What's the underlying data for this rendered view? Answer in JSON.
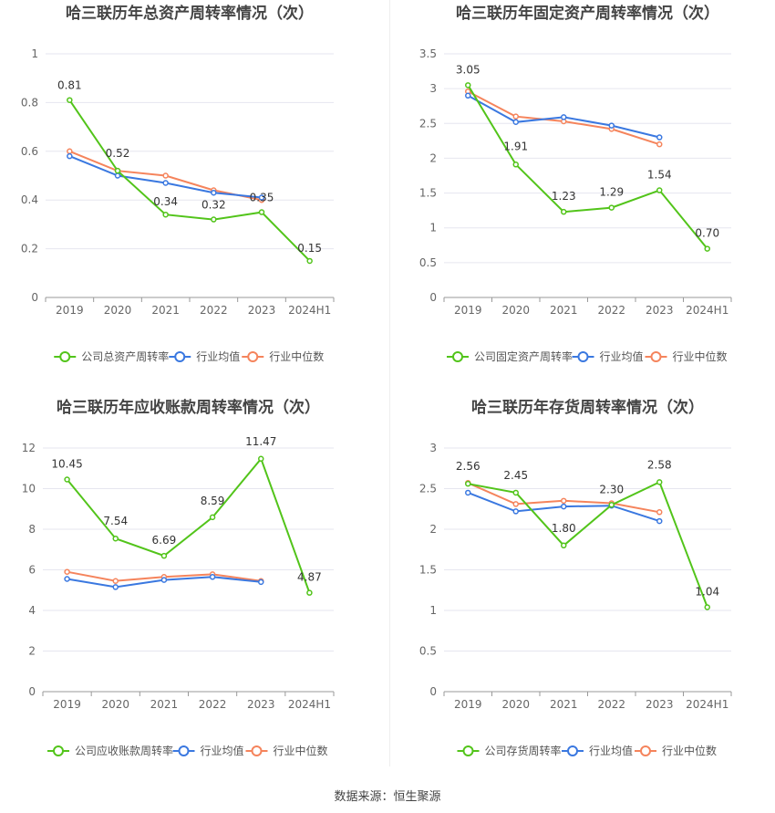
{
  "colors": {
    "company": "#52c41a",
    "average": "#3a78e0",
    "median": "#f5845c",
    "grid": "#e6e6ef",
    "axis": "#666666",
    "label": "#333333"
  },
  "legend": [
    "公司总资产周转率",
    "行业均值",
    "行业中位数"
  ],
  "source": "数据来源：恒生聚源",
  "chart_data": [
    {
      "type": "line",
      "title": "哈三联历年总资产周转率情况（次）",
      "categories": [
        "2019",
        "2020",
        "2021",
        "2022",
        "2023",
        "2024H1"
      ],
      "y_ticks": [
        "0",
        "0.2",
        "0.4",
        "0.6",
        "0.8",
        "1"
      ],
      "ylim": [
        0,
        1
      ],
      "label_decimals": 2,
      "series": [
        {
          "name": "公司总资产周转率",
          "role": "company",
          "values": [
            0.81,
            0.52,
            0.34,
            0.32,
            0.35,
            0.15
          ]
        },
        {
          "name": "行业均值",
          "role": "average",
          "values": [
            0.58,
            0.5,
            0.47,
            0.43,
            0.41,
            null
          ]
        },
        {
          "name": "行业中位数",
          "role": "median",
          "values": [
            0.6,
            0.52,
            0.5,
            0.44,
            0.4,
            null
          ]
        }
      ],
      "data_labels": [
        "0.81",
        "0.52",
        "0.34",
        "0.32",
        "0.35",
        "0.15"
      ]
    },
    {
      "type": "line",
      "title": "哈三联历年固定资产周转率情况（次）",
      "categories": [
        "2019",
        "2020",
        "2021",
        "2022",
        "2023",
        "2024H1"
      ],
      "y_ticks": [
        "0",
        "0.5",
        "1",
        "1.5",
        "2",
        "2.5",
        "3",
        "3.5"
      ],
      "ylim": [
        0,
        3.5
      ],
      "series": [
        {
          "name": "公司固定资产周转率",
          "role": "company",
          "values": [
            3.05,
            1.91,
            1.23,
            1.29,
            1.54,
            0.7
          ]
        },
        {
          "name": "行业均值",
          "role": "average",
          "values": [
            2.9,
            2.52,
            2.59,
            2.47,
            2.3,
            null
          ]
        },
        {
          "name": "行业中位数",
          "role": "median",
          "values": [
            2.96,
            2.6,
            2.53,
            2.42,
            2.2,
            null
          ]
        }
      ],
      "data_labels": [
        "3.05",
        "1.91",
        "1.23",
        "1.29",
        "1.54",
        "0.70"
      ]
    },
    {
      "type": "line",
      "title": "哈三联历年应收账款周转率情况（次）",
      "categories": [
        "2019",
        "2020",
        "2021",
        "2022",
        "2023",
        "2024H1"
      ],
      "y_ticks": [
        "0",
        "2",
        "4",
        "6",
        "8",
        "10",
        "12"
      ],
      "ylim": [
        0,
        12
      ],
      "series": [
        {
          "name": "公司应收账款周转率",
          "role": "company",
          "values": [
            10.45,
            7.54,
            6.69,
            8.59,
            11.47,
            4.87
          ]
        },
        {
          "name": "行业均值",
          "role": "average",
          "values": [
            5.55,
            5.15,
            5.5,
            5.65,
            5.4,
            null
          ]
        },
        {
          "name": "行业中位数",
          "role": "median",
          "values": [
            5.9,
            5.45,
            5.65,
            5.78,
            5.45,
            null
          ]
        }
      ],
      "data_labels": [
        "10.45",
        "7.54",
        "6.69",
        "8.59",
        "11.47",
        "4.87"
      ]
    },
    {
      "type": "line",
      "title": "哈三联历年存货周转率情况（次）",
      "categories": [
        "2019",
        "2020",
        "2021",
        "2022",
        "2023",
        "2024H1"
      ],
      "y_ticks": [
        "0",
        "0.5",
        "1",
        "1.5",
        "2",
        "2.5",
        "3"
      ],
      "ylim": [
        0,
        3
      ],
      "series": [
        {
          "name": "公司存货周转率",
          "role": "company",
          "values": [
            2.56,
            2.45,
            1.8,
            2.3,
            2.58,
            1.04
          ]
        },
        {
          "name": "行业均值",
          "role": "average",
          "values": [
            2.45,
            2.22,
            2.28,
            2.29,
            2.1,
            null
          ]
        },
        {
          "name": "行业中位数",
          "role": "median",
          "values": [
            2.57,
            2.31,
            2.35,
            2.32,
            2.21,
            null
          ]
        }
      ],
      "data_labels": [
        "2.56",
        "2.45",
        "1.80",
        "2.30",
        "2.58",
        "1.04"
      ]
    }
  ]
}
